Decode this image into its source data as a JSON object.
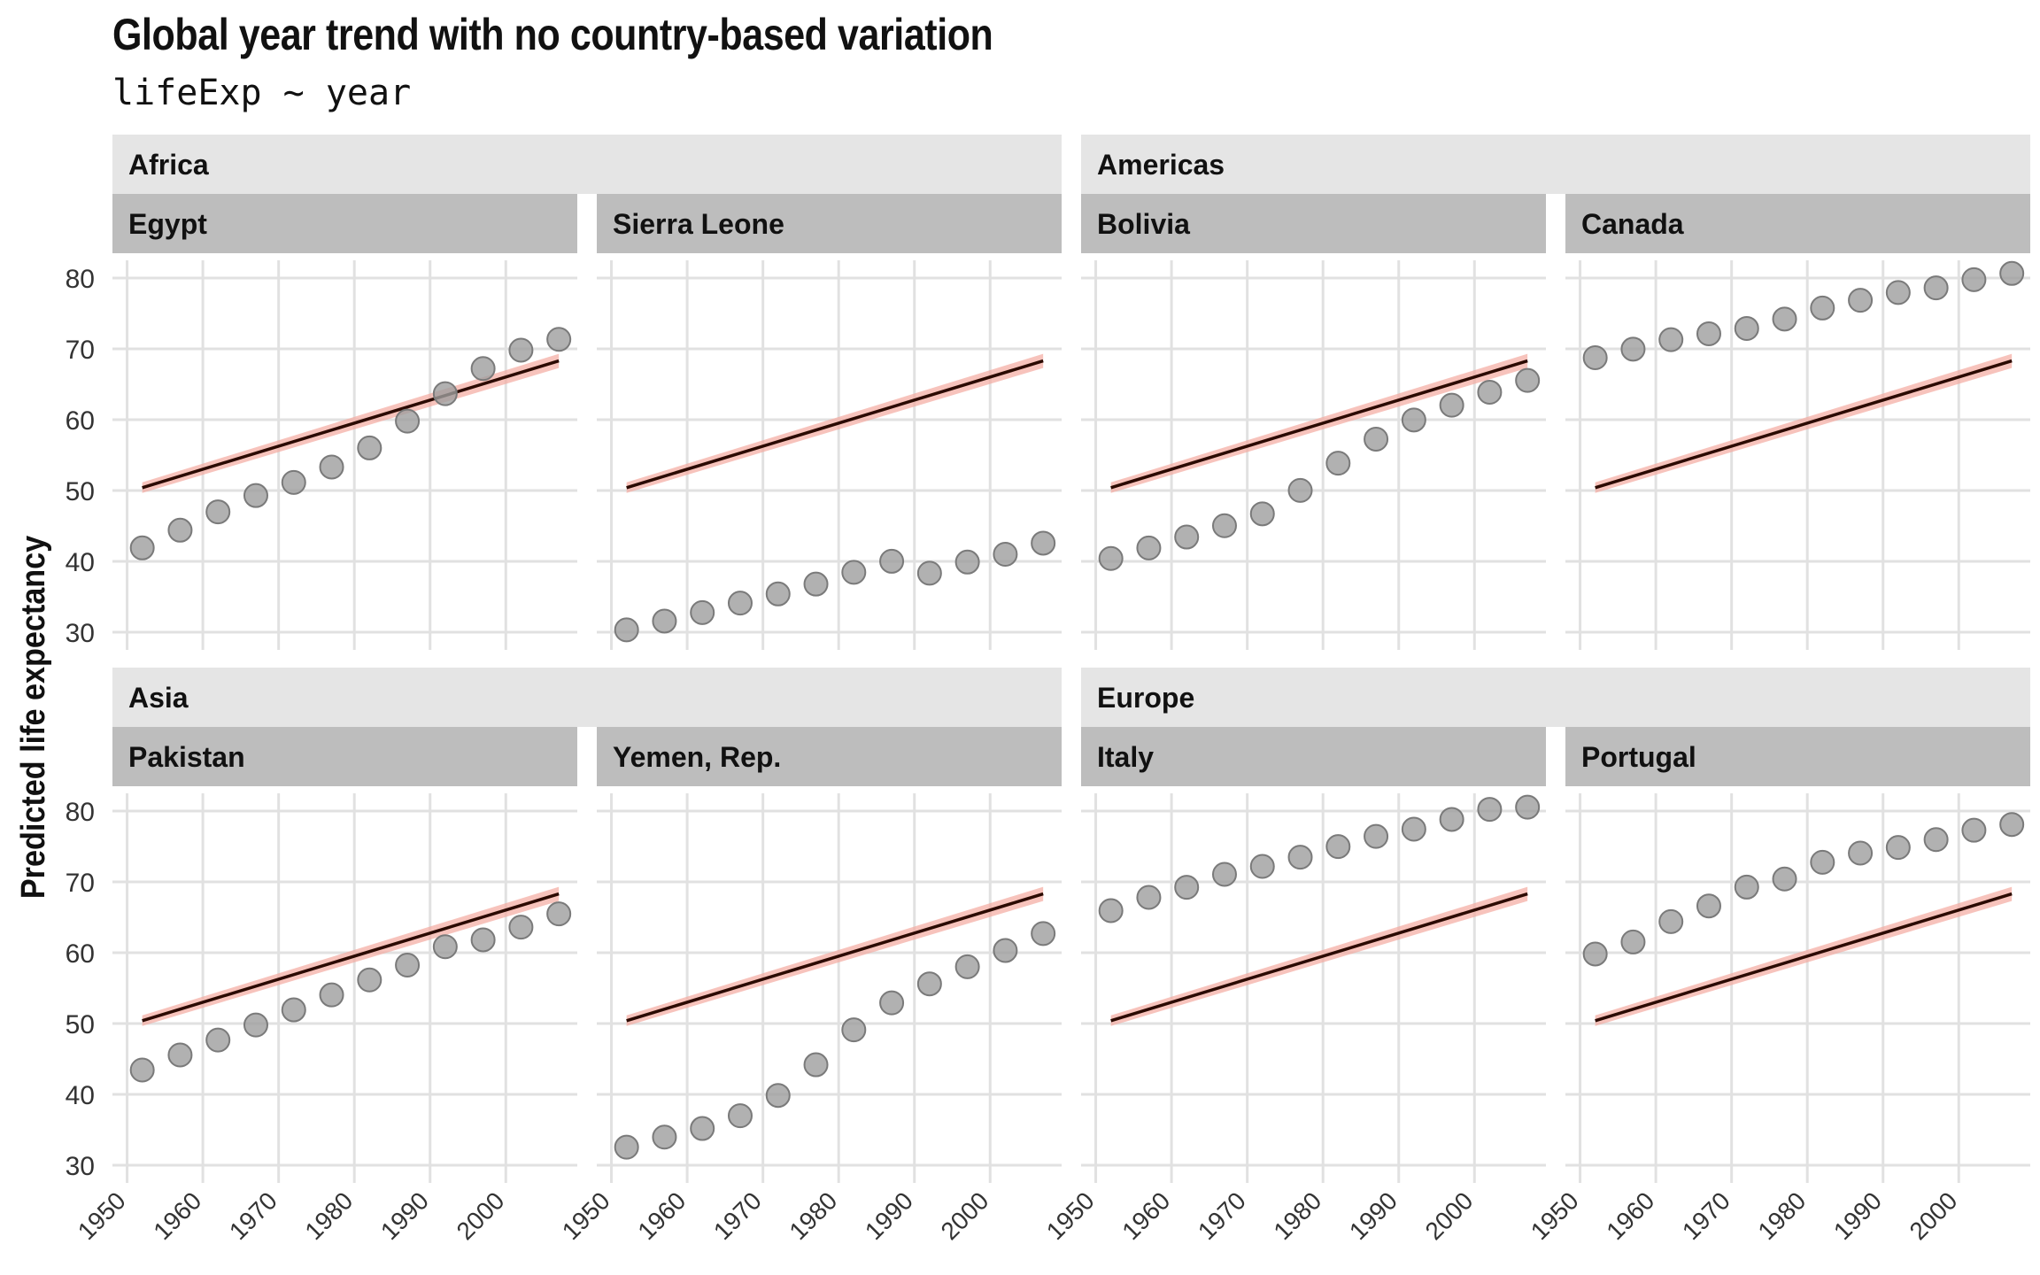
{
  "chart_data": {
    "type": "scatter",
    "title": "Global year trend with no country-based variation",
    "subtitle": "lifeExp ~ year",
    "ylabel": "Predicted life expectancy",
    "xlabel": "",
    "xlim": [
      1950,
      2007
    ],
    "ylim": [
      30,
      82
    ],
    "x_ticks": [
      1950,
      1960,
      1970,
      1980,
      1990,
      2000
    ],
    "y_ticks": [
      30,
      40,
      50,
      60,
      70,
      80
    ],
    "grid": true,
    "years": [
      1952,
      1957,
      1962,
      1967,
      1972,
      1977,
      1982,
      1987,
      1992,
      1997,
      2002,
      2007
    ],
    "trend_line": {
      "description_values": [
        [
          1952,
          50.4
        ],
        [
          2007,
          68.3
        ]
      ]
    },
    "colors": {
      "point": "#9e9e9e",
      "point_border": "#7a7a7a",
      "line": "#2b0a00",
      "ribbon": "#f4a9a0",
      "strip_outer": "#e5e5e5",
      "strip_inner": "#bdbdbd",
      "grid": "#e1e1e1"
    },
    "groups": [
      {
        "continent": "Africa",
        "countries": [
          {
            "name": "Egypt",
            "values": [
              41.9,
              44.4,
              46.99,
              49.29,
              51.14,
              53.32,
              56.01,
              59.8,
              63.67,
              67.22,
              69.81,
              71.34
            ]
          },
          {
            "name": "Sierra Leone",
            "values": [
              30.33,
              31.57,
              32.77,
              34.11,
              35.4,
              36.79,
              38.45,
              40.01,
              38.33,
              39.9,
              41.0,
              42.57
            ]
          }
        ]
      },
      {
        "continent": "Americas",
        "countries": [
          {
            "name": "Bolivia",
            "values": [
              40.41,
              41.89,
              43.43,
              45.03,
              46.71,
              50.02,
              53.86,
              57.25,
              59.96,
              62.05,
              63.88,
              65.55
            ]
          },
          {
            "name": "Canada",
            "values": [
              68.75,
              69.96,
              71.3,
              72.13,
              72.88,
              74.21,
              75.76,
              76.86,
              77.95,
              78.61,
              79.77,
              80.65
            ]
          }
        ]
      },
      {
        "continent": "Asia",
        "countries": [
          {
            "name": "Pakistan",
            "values": [
              43.44,
              45.56,
              47.67,
              49.8,
              51.93,
              54.04,
              56.16,
              58.25,
              60.84,
              61.82,
              63.61,
              65.48
            ]
          },
          {
            "name": "Yemen, Rep.",
            "values": [
              32.55,
              33.97,
              35.18,
              36.98,
              39.85,
              44.18,
              49.11,
              52.92,
              55.6,
              58.02,
              60.31,
              62.7
            ]
          }
        ]
      },
      {
        "continent": "Europe",
        "countries": [
          {
            "name": "Italy",
            "values": [
              65.94,
              67.81,
              69.24,
              71.06,
              72.19,
              73.48,
              74.98,
              76.42,
              77.44,
              78.82,
              80.24,
              80.55
            ]
          },
          {
            "name": "Portugal",
            "values": [
              59.82,
              61.51,
              64.39,
              66.6,
              69.26,
              70.41,
              72.77,
              74.06,
              74.86,
              75.97,
              77.29,
              78.1
            ]
          }
        ]
      }
    ]
  }
}
